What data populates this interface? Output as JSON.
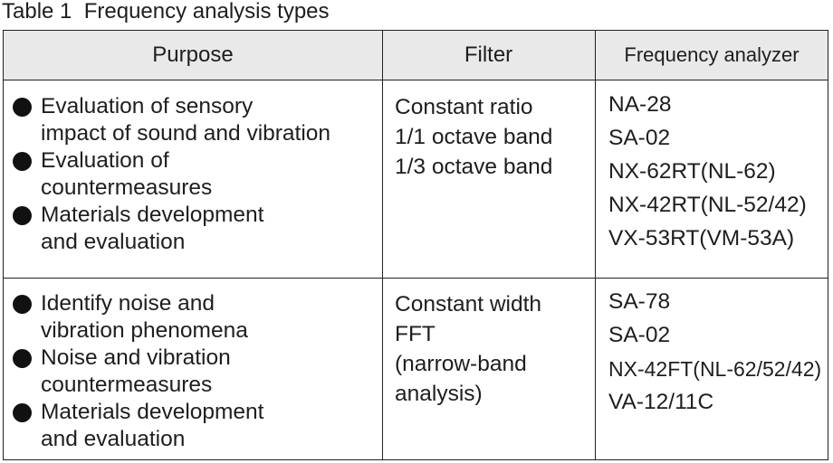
{
  "caption": "Table 1  Frequency analysis types",
  "table": {
    "header": [
      "Purpose",
      "Filter",
      "Frequency analyzer"
    ],
    "rows": [
      {
        "purpose": [
          [
            "Evaluation of sensory",
            "impact of sound and vibration"
          ],
          [
            "Evaluation of",
            "countermeasures"
          ],
          [
            "Materials development",
            "and evaluation"
          ]
        ],
        "filter": [
          "Constant ratio",
          "1/1 octave band",
          "1/3 octave band"
        ],
        "analyzer": [
          "NA-28",
          "SA-02",
          "NX-62RT(NL-62)",
          "NX-42RT(NL-52/42)",
          "VX-53RT(VM-53A)"
        ]
      },
      {
        "purpose": [
          [
            "Identify noise and",
            "vibration phenomena"
          ],
          [
            "Noise and vibration",
            "countermeasures"
          ],
          [
            "Materials development",
            "and evaluation"
          ]
        ],
        "filter": [
          "Constant width",
          "FFT",
          "(narrow-band",
          "analysis)"
        ],
        "analyzer": [
          "SA-78",
          "SA-02",
          "NX-42FT(NL-62/52/42)",
          "VA-12/11C"
        ]
      }
    ]
  }
}
